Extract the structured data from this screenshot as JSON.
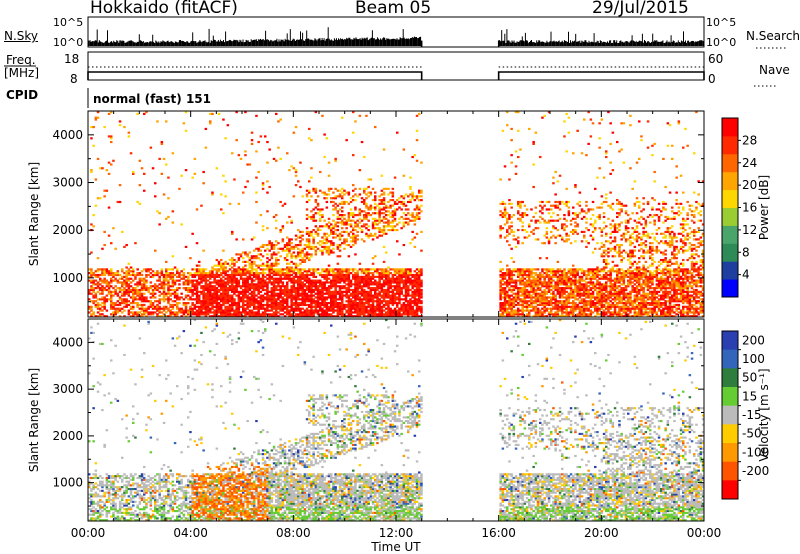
{
  "header": {
    "station": "Hokkaido (fitACF)",
    "beam": "Beam 05",
    "date": "29/Jul/2015"
  },
  "noise_panel": {
    "left_label": "N.Sky",
    "right_label": "N.Search",
    "left_ticks": [
      "10^5",
      "10^0"
    ],
    "right_ticks": [
      "10^5",
      "10^0"
    ]
  },
  "freq_panel": {
    "left_label_1": "Freq.",
    "left_label_2": "[MHz]",
    "left_ticks": [
      "18",
      "8"
    ],
    "right_label": "Nave",
    "right_ticks": [
      "60",
      "0"
    ]
  },
  "cpid": {
    "label": "CPID",
    "mode": "normal (fast) 151"
  },
  "colors": {
    "power": [
      "#0000ff",
      "#1f3fa0",
      "#2e8b57",
      "#4aa56a",
      "#9acd32",
      "#ffd700",
      "#ffa500",
      "#ff6600",
      "#ff2a00",
      "#ff0000"
    ],
    "velocity": [
      "#2a3fb0",
      "#3366bb",
      "#2e7d3c",
      "#66cc33",
      "#bbbbbb",
      "#ffcc00",
      "#ff9900",
      "#ff5500",
      "#ff0000"
    ]
  },
  "chart_data": [
    {
      "type": "heatmap",
      "parameter": "Power",
      "ylabel": "Slant Range [km]",
      "ylim": [
        180,
        4500
      ],
      "yticks": [
        "1000",
        "2000",
        "3000",
        "4000"
      ],
      "xlim": [
        "00:00",
        "24:00"
      ],
      "colorbar": {
        "label": "Power [dB]",
        "ticks": [
          "4",
          "8",
          "12",
          "16",
          "20",
          "24",
          "28"
        ],
        "range": [
          0,
          32
        ]
      },
      "data_gap": [
        "13:00",
        "16:00"
      ]
    },
    {
      "type": "heatmap",
      "parameter": "Velocity",
      "ylabel": "Slant Range [km]",
      "ylim": [
        180,
        4500
      ],
      "yticks": [
        "1000",
        "2000",
        "3000",
        "4000"
      ],
      "xlim": [
        "00:00",
        "24:00"
      ],
      "xticks": [
        "00:00",
        "04:00",
        "08:00",
        "12:00",
        "16:00",
        "20:00",
        "00:00"
      ],
      "xlabel": "Time UT",
      "colorbar": {
        "label": "Velocity [m s^-1]",
        "ticks": [
          "200",
          "100",
          "50",
          "15",
          "-15",
          "-50",
          "-100",
          "-200"
        ]
      },
      "data_gap": [
        "13:00",
        "16:00"
      ]
    }
  ]
}
